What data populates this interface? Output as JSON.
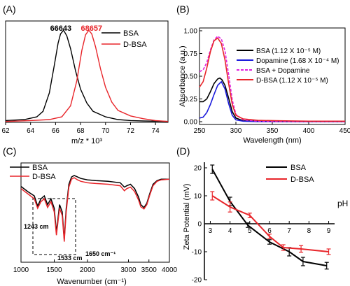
{
  "figure": {
    "panel_labels": [
      "(A)",
      "(B)",
      "(C)",
      "(D)"
    ]
  },
  "chart_data": [
    {
      "panel": "(A)",
      "type": "line",
      "xlabel": "m/z * 10³",
      "ylabel": "",
      "xlim": [
        62,
        75
      ],
      "ylim": [
        0,
        1.1
      ],
      "xticks": [
        62,
        64,
        66,
        68,
        70,
        72,
        74
      ],
      "grid": false,
      "legend": "top-right",
      "peak_labels": [
        {
          "text": "66643",
          "x": 66.643,
          "color": "#000000"
        },
        {
          "text": "68657",
          "x": 68.657,
          "color": "#e8252a"
        }
      ],
      "series": [
        {
          "name": "BSA",
          "color": "#000000",
          "x": [
            62,
            63.5,
            64.5,
            65,
            65.5,
            65.9,
            66.2,
            66.4,
            66.64,
            66.9,
            67.2,
            67.6,
            68,
            68.5,
            69,
            70,
            71,
            72,
            73,
            75
          ],
          "y": [
            0.02,
            0.03,
            0.06,
            0.12,
            0.32,
            0.62,
            0.86,
            0.96,
            1.0,
            0.94,
            0.8,
            0.56,
            0.36,
            0.21,
            0.12,
            0.06,
            0.03,
            0.02,
            0.015,
            0.01
          ]
        },
        {
          "name": "D-BSA",
          "color": "#e8252a",
          "x": [
            62,
            64,
            65.5,
            66.5,
            67.2,
            67.7,
            68.1,
            68.4,
            68.66,
            68.9,
            69.2,
            69.6,
            70,
            70.5,
            71,
            72,
            73,
            74,
            75
          ],
          "y": [
            0.01,
            0.02,
            0.03,
            0.06,
            0.18,
            0.45,
            0.78,
            0.95,
            1.0,
            0.96,
            0.82,
            0.58,
            0.38,
            0.22,
            0.13,
            0.07,
            0.04,
            0.02,
            0.01
          ]
        }
      ]
    },
    {
      "panel": "(B)",
      "type": "line",
      "xlabel": "Wavelength (nm)",
      "ylabel": "Absorbance (a.u.)",
      "xlim": [
        250,
        450
      ],
      "ylim": [
        0,
        1.0
      ],
      "xticks": [
        250,
        300,
        350,
        400,
        450
      ],
      "yticks": [
        0.0,
        0.25,
        0.5,
        0.75,
        1.0
      ],
      "ytick_labels": [
        "0.00",
        "0.25",
        "0.50",
        "0.75",
        "1.00"
      ],
      "grid": false,
      "legend": "top-right",
      "series": [
        {
          "name": "BSA (1.12 X 10⁻⁵ M)",
          "color": "#000000",
          "dash": "solid",
          "x": [
            250,
            255,
            260,
            265,
            270,
            275,
            278,
            281,
            285,
            290,
            295,
            300,
            310,
            330,
            360,
            400,
            450
          ],
          "y": [
            0.22,
            0.22,
            0.25,
            0.33,
            0.42,
            0.47,
            0.48,
            0.46,
            0.4,
            0.26,
            0.11,
            0.04,
            0.01,
            0.005,
            0.0,
            0.0,
            0.0
          ]
        },
        {
          "name": "Dopamine (1.68 X 10⁻⁴ M)",
          "color": "#1a1adb",
          "dash": "solid",
          "x": [
            250,
            255,
            260,
            265,
            270,
            275,
            280,
            285,
            290,
            295,
            300,
            310,
            330,
            360,
            400,
            450
          ],
          "y": [
            0.04,
            0.05,
            0.1,
            0.19,
            0.3,
            0.4,
            0.44,
            0.36,
            0.2,
            0.07,
            0.02,
            0.005,
            0.0,
            0.0,
            0.0,
            0.0
          ]
        },
        {
          "name": "BSA + Dopamine",
          "color": "#e020e0",
          "dash": "dashed",
          "x": [
            250,
            255,
            260,
            265,
            270,
            275,
            280,
            285,
            290,
            295,
            300,
            310,
            330,
            360,
            400,
            450
          ],
          "y": [
            0.55,
            0.57,
            0.65,
            0.79,
            0.9,
            0.94,
            0.91,
            0.78,
            0.52,
            0.24,
            0.08,
            0.02,
            0.005,
            0.0,
            0.0,
            0.0
          ]
        },
        {
          "name": "D-BSA (1.12 X 10⁻⁵ M)",
          "color": "#e8252a",
          "dash": "solid",
          "x": [
            250,
            255,
            260,
            265,
            270,
            275,
            280,
            285,
            290,
            295,
            300,
            310,
            330,
            360,
            400,
            450
          ],
          "y": [
            0.38,
            0.44,
            0.59,
            0.77,
            0.89,
            0.92,
            0.86,
            0.68,
            0.42,
            0.19,
            0.07,
            0.03,
            0.015,
            0.01,
            0.005,
            0.005
          ]
        }
      ]
    },
    {
      "panel": "(C)",
      "type": "line",
      "xlabel": "Wavenumber (cm⁻¹)",
      "ylabel": "",
      "xticks": [
        1000,
        1500,
        2000,
        3000,
        3500,
        4000
      ],
      "xtick_labels": [
        "1000",
        "1500",
        "2000",
        "3000",
        "3500",
        "4000"
      ],
      "grid": false,
      "legend": "top-left",
      "annotations": [
        "1243 cm",
        "1533 cm",
        "1650 cm⁻¹"
      ],
      "inset_box": {
        "x_range": [
          1200,
          1800
        ],
        "style": "dashed"
      },
      "series": [
        {
          "name": "BSA",
          "color": "#000000",
          "x": [
            1000,
            1100,
            1200,
            1250,
            1300,
            1350,
            1400,
            1450,
            1500,
            1533,
            1580,
            1620,
            1650,
            1680,
            1720,
            1760,
            1800,
            1850,
            1900,
            2000,
            2200,
            2500,
            2800,
            2900,
            2960,
            3050,
            3150,
            3250,
            3300,
            3380,
            3450,
            3520,
            3600,
            3700,
            3800,
            4000
          ],
          "y": [
            0.85,
            0.78,
            0.72,
            0.58,
            0.68,
            0.72,
            0.6,
            0.68,
            0.55,
            0.22,
            0.6,
            0.5,
            0.12,
            0.55,
            0.88,
            0.98,
            1.0,
            0.98,
            0.96,
            0.94,
            0.93,
            0.92,
            0.9,
            0.84,
            0.86,
            0.88,
            0.82,
            0.7,
            0.6,
            0.56,
            0.62,
            0.75,
            0.88,
            0.93,
            0.95,
            0.95
          ]
        },
        {
          "name": "D-BSA",
          "color": "#e8252a",
          "x": [
            1000,
            1100,
            1200,
            1250,
            1300,
            1350,
            1400,
            1450,
            1500,
            1533,
            1580,
            1620,
            1650,
            1680,
            1720,
            1760,
            1800,
            1850,
            1900,
            2000,
            2200,
            2500,
            2800,
            2900,
            2960,
            3050,
            3150,
            3250,
            3300,
            3380,
            3450,
            3520,
            3600,
            3700,
            3800,
            4000
          ],
          "y": [
            0.82,
            0.75,
            0.68,
            0.55,
            0.64,
            0.68,
            0.56,
            0.64,
            0.5,
            0.18,
            0.55,
            0.45,
            0.09,
            0.5,
            0.84,
            0.95,
            0.97,
            0.94,
            0.92,
            0.9,
            0.89,
            0.88,
            0.86,
            0.79,
            0.82,
            0.84,
            0.78,
            0.66,
            0.57,
            0.54,
            0.6,
            0.73,
            0.86,
            0.92,
            0.94,
            0.95
          ]
        }
      ]
    },
    {
      "panel": "(D)",
      "type": "line",
      "xlabel": "pH",
      "ylabel": "Zeta Potential (mV)",
      "xlim": [
        2.7,
        9.3
      ],
      "ylim": [
        -20,
        22
      ],
      "xticks": [
        3,
        4,
        5,
        6,
        7,
        8,
        9
      ],
      "yticks": [
        -20,
        -10,
        0,
        10,
        20
      ],
      "grid": false,
      "legend": "top-right",
      "series": [
        {
          "name": "BSA",
          "color": "#000000",
          "x": [
            3.1,
            4.0,
            4.9,
            6.0,
            7.0,
            7.7,
            8.9
          ],
          "y": [
            19.5,
            8.0,
            -0.5,
            -6.5,
            -10.0,
            -13.5,
            -15.0
          ],
          "err": [
            1.5,
            1.5,
            0.8,
            0.8,
            1.5,
            1.5,
            1.2
          ]
        },
        {
          "name": "D-BSA",
          "color": "#e8252a",
          "x": [
            3.1,
            4.0,
            5.0,
            6.0,
            6.7,
            7.6,
            9.0
          ],
          "y": [
            10.0,
            6.0,
            3.0,
            -4.5,
            -8.5,
            -9.0,
            -10.0
          ],
          "err": [
            1.5,
            1.8,
            0.8,
            0.8,
            1.0,
            1.2,
            1.0
          ]
        }
      ]
    }
  ]
}
